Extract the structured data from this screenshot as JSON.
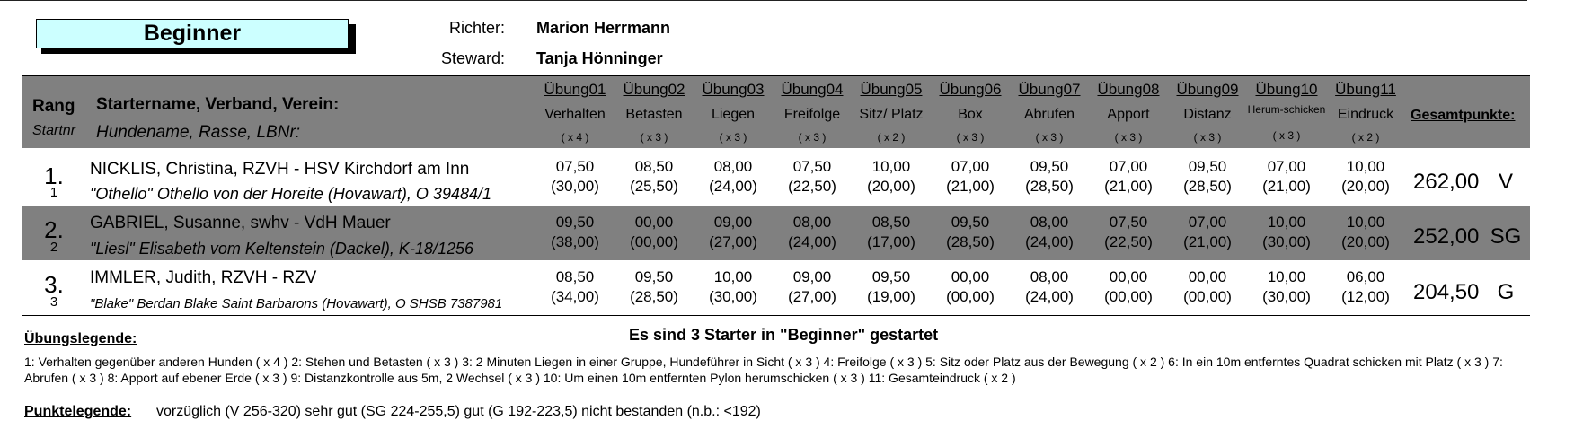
{
  "class_title": "Beginner",
  "judge": {
    "label": "Richter:",
    "name": "Marion Herrmann"
  },
  "steward": {
    "label": "Steward:",
    "name": "Tanja Hönninger"
  },
  "table_header": {
    "rang": "Rang",
    "startnr": "Startnr",
    "starter": "Startername, Verband, Verein:",
    "dog": "Hundename, Rasse, LBNr:",
    "total": "Gesamtpunkte:"
  },
  "exercises": [
    {
      "label": "Übung01",
      "name": "Verhalten",
      "factor": "( x 4 )"
    },
    {
      "label": "Übung02",
      "name": "Betasten",
      "factor": "( x 3 )"
    },
    {
      "label": "Übung03",
      "name": "Liegen",
      "factor": "( x 3 )"
    },
    {
      "label": "Übung04",
      "name": "Freifolge",
      "factor": "( x 3 )"
    },
    {
      "label": "Übung05",
      "name": "Sitz/ Platz",
      "factor": "( x 2 )"
    },
    {
      "label": "Übung06",
      "name": "Box",
      "factor": "( x 3 )"
    },
    {
      "label": "Übung07",
      "name": "Abrufen",
      "factor": "( x 3 )"
    },
    {
      "label": "Übung08",
      "name": "Apport",
      "factor": "( x 3 )"
    },
    {
      "label": "Übung09",
      "name": "Distanz",
      "factor": "( x 3 )"
    },
    {
      "label": "Übung10",
      "name": "Herum-schicken",
      "factor": "( x 3 )"
    },
    {
      "label": "Übung11",
      "name": "Eindruck",
      "factor": "( x 2 )"
    }
  ],
  "results": [
    {
      "rank": "1.",
      "startnr": "1",
      "starter": "NICKLIS, Christina,  RZVH - HSV Kirchdorf am Inn",
      "dog": "\"Othello\" Othello von der Horeite (Hovawart), O 39484/1",
      "scores": [
        "07,50",
        "08,50",
        "08,00",
        "07,50",
        "10,00",
        "07,00",
        "09,50",
        "07,00",
        "09,50",
        "07,00",
        "10,00"
      ],
      "weighted": [
        "(30,00)",
        "(25,50)",
        "(24,00)",
        "(22,50)",
        "(20,00)",
        "(21,00)",
        "(28,50)",
        "(21,00)",
        "(28,50)",
        "(21,00)",
        "(20,00)"
      ],
      "total": "262,00",
      "grade": "V"
    },
    {
      "rank": "2.",
      "startnr": "2",
      "starter": "GABRIEL, Susanne,  swhv - VdH Mauer",
      "dog": "\"Liesl\" Elisabeth vom Keltenstein (Dackel), K-18/1256",
      "scores": [
        "09,50",
        "00,00",
        "09,00",
        "08,00",
        "08,50",
        "09,50",
        "08,00",
        "07,50",
        "07,00",
        "10,00",
        "10,00"
      ],
      "weighted": [
        "(38,00)",
        "(00,00)",
        "(27,00)",
        "(24,00)",
        "(17,00)",
        "(28,50)",
        "(24,00)",
        "(22,50)",
        "(21,00)",
        "(30,00)",
        "(20,00)"
      ],
      "total": "252,00",
      "grade": "SG"
    },
    {
      "rank": "3.",
      "startnr": "3",
      "starter": "IMMLER, Judith,  RZVH - RZV",
      "dog": "\"Blake\" Berdan Blake Saint Barbarons (Hovawart), O SHSB 7387981",
      "scores": [
        "08,50",
        "09,50",
        "10,00",
        "09,00",
        "09,50",
        "00,00",
        "08,00",
        "00,00",
        "00,00",
        "10,00",
        "06,00"
      ],
      "weighted": [
        "(34,00)",
        "(28,50)",
        "(30,00)",
        "(27,00)",
        "(19,00)",
        "(00,00)",
        "(24,00)",
        "(00,00)",
        "(00,00)",
        "(30,00)",
        "(12,00)"
      ],
      "total": "204,50",
      "grade": "G"
    }
  ],
  "legend": {
    "title": "Übungslegende:",
    "summary": "Es  sind 3 Starter in \"Beginner\" gestartet",
    "text": "1: Verhalten gegenüber anderen Hunden ( x 4 )  2: Stehen und Betasten ( x 3 )  3: 2 Minuten Liegen in einer Gruppe, Hundeführer in Sicht ( x 3 )  4: Freifolge ( x 3 )  5: Sitz oder Platz aus der Bewegung ( x 2 )  6: In ein 10m entferntes Quadrat schicken mit Platz ( x 3 )  7: Abrufen ( x 3 )  8: Apport auf ebener Erde ( x 3 )  9: Distanzkontrolle aus 5m, 2 Wechsel ( x 3 )  10: Um einen 10m entfernten Pylon herumschicken ( x 3 )  11: Gesamteindruck ( x 2 )"
  },
  "points_legend": {
    "label": "Punktelegende:",
    "text": "vorzüglich (V 256-320)   sehr gut (SG 224-255,5)   gut (G 192-223,5)   nicht bestanden (n.b.: <192)"
  }
}
